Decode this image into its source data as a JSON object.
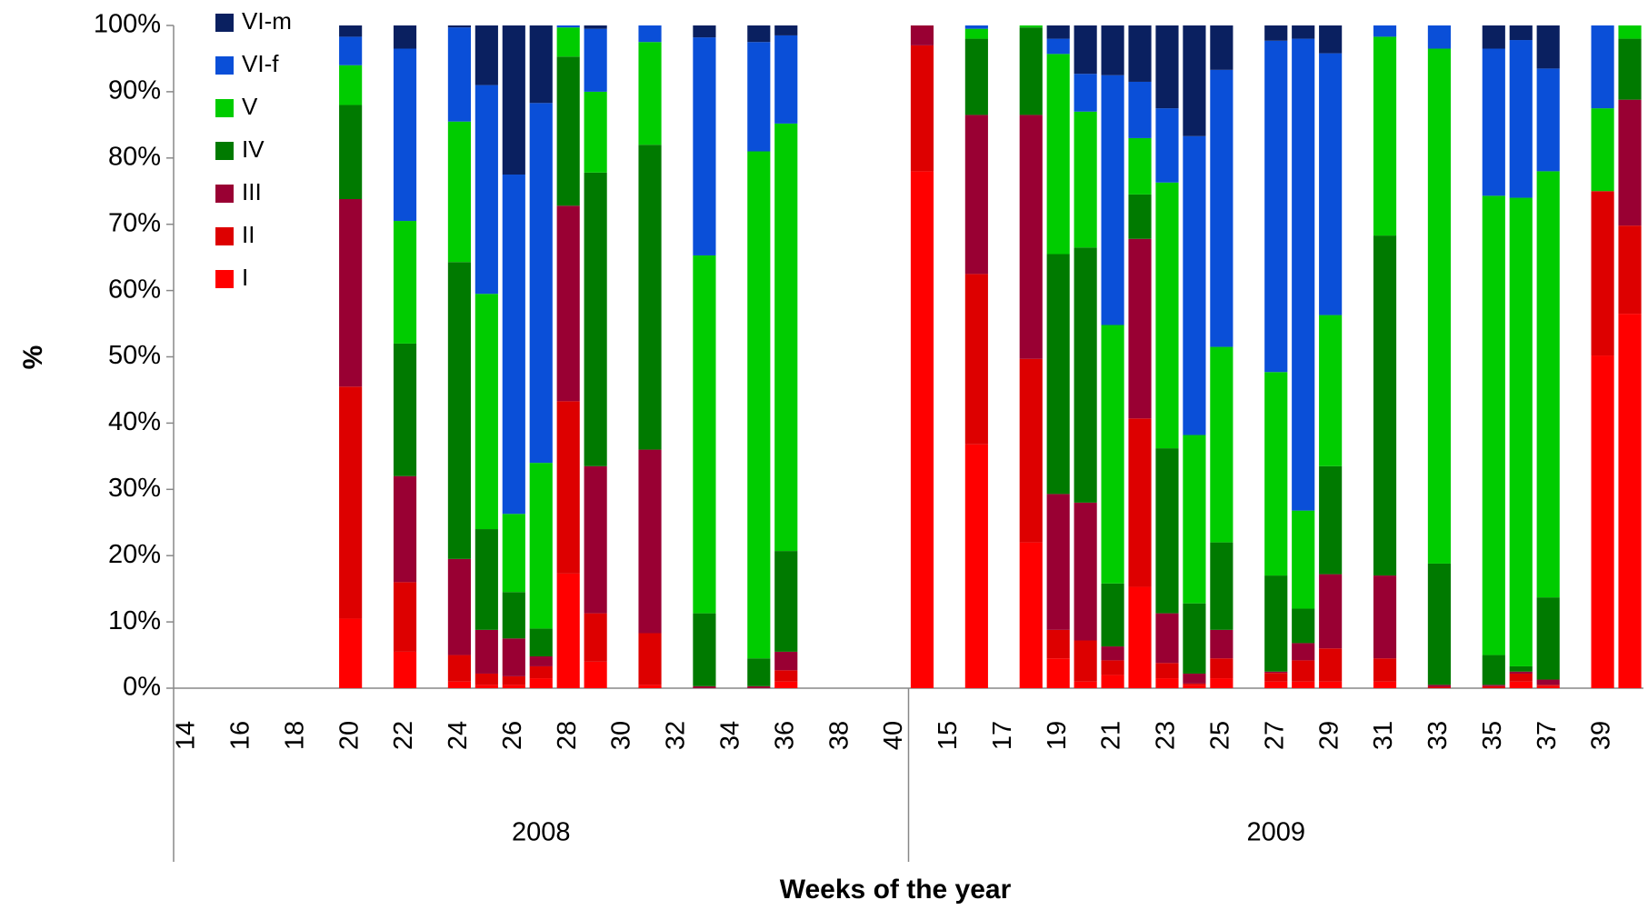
{
  "chart_data": {
    "type": "stacked_bar_100",
    "y_label": "%",
    "x_label": "Weeks of the year",
    "ylim": [
      0,
      100
    ],
    "yticks": [
      {
        "value": 0,
        "label": "0%"
      },
      {
        "value": 10,
        "label": "10%"
      },
      {
        "value": 20,
        "label": "20%"
      },
      {
        "value": 30,
        "label": "30%"
      },
      {
        "value": 40,
        "label": "40%"
      },
      {
        "value": 50,
        "label": "50%"
      },
      {
        "value": 60,
        "label": "60%"
      },
      {
        "value": 70,
        "label": "70%"
      },
      {
        "value": 80,
        "label": "80%"
      },
      {
        "value": 90,
        "label": "90%"
      },
      {
        "value": 100,
        "label": "100%"
      }
    ],
    "groups": [
      {
        "label": "2008",
        "categories": [
          "14",
          null,
          "16",
          null,
          "18",
          null,
          "20",
          null,
          "22",
          null,
          "24",
          null,
          "26",
          null,
          "28",
          null,
          "30",
          null,
          "32",
          null,
          "34",
          null,
          "36",
          null,
          "38",
          null,
          "40"
        ]
      },
      {
        "label": "2009",
        "categories": [
          null,
          "15",
          null,
          "17",
          null,
          "19",
          null,
          "21",
          null,
          "23",
          null,
          "25",
          null,
          "27",
          null,
          "29",
          null,
          "31",
          null,
          "33",
          null,
          "35",
          null,
          "37",
          null,
          "39",
          null
        ]
      }
    ],
    "legend": "upper left",
    "series": [
      {
        "name": "I",
        "color": "#ff0000",
        "values": [
          null,
          null,
          null,
          null,
          null,
          null,
          10.5,
          null,
          5.5,
          null,
          1,
          0.5,
          0.5,
          1.5,
          17.3,
          4,
          null,
          0.5,
          null,
          0,
          null,
          0,
          1,
          null,
          null,
          null,
          null,
          78,
          null,
          36.8,
          null,
          22,
          4.5,
          1,
          2,
          15.3,
          1.5,
          0.5,
          1.5,
          null,
          1,
          1,
          1,
          null,
          1,
          null,
          0,
          null,
          0,
          1,
          0.3,
          null,
          50.2,
          56.5
        ]
      },
      {
        "name": "II",
        "color": "#dd0000",
        "values": [
          null,
          null,
          null,
          null,
          null,
          null,
          35,
          null,
          10.5,
          null,
          4,
          1.7,
          1.3,
          1.8,
          26,
          7.3,
          null,
          7.8,
          null,
          0,
          null,
          0,
          1.7,
          null,
          null,
          null,
          null,
          19,
          null,
          25.7,
          null,
          27.7,
          4.3,
          6.2,
          2.2,
          25.4,
          2.3,
          0.2,
          3,
          null,
          1.3,
          3.2,
          5,
          null,
          3.5,
          null,
          0.2,
          null,
          0.3,
          1.2,
          0.2,
          null,
          24.8,
          13.3
        ]
      },
      {
        "name": "III",
        "color": "#990033",
        "values": [
          null,
          null,
          null,
          null,
          null,
          null,
          28.3,
          null,
          16,
          null,
          14.5,
          6.6,
          5.7,
          1.5,
          29.5,
          22.2,
          null,
          27.7,
          null,
          0.3,
          null,
          0.3,
          2.8,
          null,
          null,
          null,
          null,
          3,
          null,
          24,
          null,
          36.8,
          20.5,
          20.8,
          2.1,
          27.1,
          7.5,
          1.5,
          4.3,
          null,
          0.2,
          2.6,
          11.2,
          null,
          12.5,
          null,
          0.3,
          null,
          0.2,
          0.3,
          0.8,
          null,
          0,
          19
        ]
      },
      {
        "name": "IV",
        "color": "#007a00",
        "values": [
          null,
          null,
          null,
          null,
          null,
          null,
          14.2,
          null,
          20,
          null,
          44.8,
          15.2,
          7,
          4.2,
          22.5,
          44.3,
          null,
          46,
          null,
          11,
          null,
          4.2,
          15.2,
          null,
          null,
          null,
          null,
          0,
          null,
          11.5,
          null,
          13.2,
          36.2,
          38.5,
          9.5,
          6.7,
          24.9,
          10.6,
          13.2,
          null,
          14.5,
          5.2,
          16.3,
          null,
          51.3,
          null,
          18.3,
          null,
          4.5,
          0.8,
          12.4,
          null,
          0,
          9.2
        ]
      },
      {
        "name": "V",
        "color": "#00cc00",
        "values": [
          null,
          null,
          null,
          null,
          null,
          null,
          6,
          null,
          18.5,
          null,
          21.2,
          35.5,
          11.8,
          25,
          4.4,
          12.2,
          null,
          15.5,
          null,
          54,
          null,
          76.5,
          64.5,
          null,
          null,
          null,
          null,
          0,
          null,
          1.5,
          null,
          0.3,
          30.2,
          20.5,
          39,
          8.5,
          40.1,
          25.4,
          29.5,
          null,
          30.7,
          14.8,
          22.8,
          null,
          30,
          null,
          77.7,
          null,
          69.3,
          70.7,
          64.3,
          null,
          12.5,
          2
        ]
      },
      {
        "name": "VI-f",
        "color": "#0a4fd8",
        "values": [
          null,
          null,
          null,
          null,
          null,
          null,
          4.3,
          null,
          26,
          null,
          14.2,
          31.5,
          51.2,
          54.3,
          0.3,
          9.5,
          null,
          2.5,
          null,
          32.9,
          null,
          16.5,
          13.3,
          null,
          null,
          null,
          null,
          0,
          null,
          0.5,
          null,
          0,
          2.3,
          5.7,
          37.7,
          8.5,
          11.2,
          45.1,
          41.8,
          null,
          50,
          71.2,
          39.5,
          null,
          1.7,
          null,
          3.5,
          null,
          22.2,
          23.8,
          15.5,
          null,
          12.5,
          0
        ]
      },
      {
        "name": "VI-m",
        "color": "#0a2060",
        "values": [
          null,
          null,
          null,
          null,
          null,
          null,
          1.7,
          null,
          3.5,
          null,
          0.3,
          9,
          22.5,
          11.7,
          0,
          0.5,
          null,
          0,
          null,
          1.8,
          null,
          2.5,
          1.5,
          null,
          null,
          null,
          null,
          0,
          null,
          0,
          null,
          0,
          2,
          7.3,
          7.5,
          8.5,
          12.5,
          16.7,
          6.7,
          null,
          2.3,
          2,
          4.2,
          null,
          0,
          null,
          0,
          null,
          3.5,
          2.2,
          6.5,
          null,
          0,
          0
        ]
      }
    ]
  }
}
